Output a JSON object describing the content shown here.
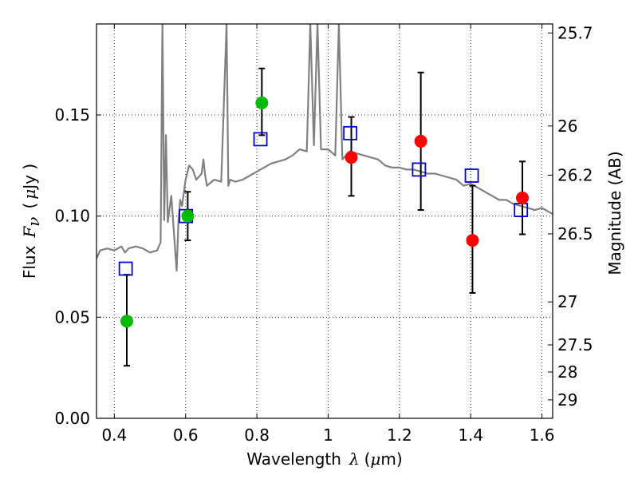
{
  "chart_data": {
    "type": "scatter",
    "xlabel": {
      "prefix": "Wavelength",
      "symbol": "λ",
      "unit_open": "(",
      "unit_mu": "μ",
      "unit_rest": "m)"
    },
    "ylabel": {
      "prefix": "Flux",
      "symbol": "F",
      "subscript": "ν",
      "unit_open": "(",
      "unit_mu": "μ",
      "unit_rest": "Jy )"
    },
    "ylabel_right": "Magnitude (AB)",
    "xlim": [
      0.35,
      1.63
    ],
    "ylim": [
      0.0,
      0.195
    ],
    "x_ticks": [
      0.4,
      0.6,
      0.8,
      1.0,
      1.2,
      1.4,
      1.6
    ],
    "x_tick_labels": [
      "0.4",
      "0.6",
      "0.8",
      "1",
      "1.2",
      "1.4",
      "1.6"
    ],
    "y_ticks": [
      0.0,
      0.05,
      0.1,
      0.15
    ],
    "y_tick_labels": [
      "0.00",
      "0.05",
      "0.10",
      "0.15"
    ],
    "right_ticks": [
      {
        "mag": 25.7,
        "label": "25.7"
      },
      {
        "mag": 26,
        "label": "26"
      },
      {
        "mag": 26.2,
        "label": "26.2"
      },
      {
        "mag": 26.5,
        "label": "26.5"
      },
      {
        "mag": 27,
        "label": "27"
      },
      {
        "mag": 27.5,
        "label": "27.5"
      },
      {
        "mag": 28,
        "label": "28"
      },
      {
        "mag": 29,
        "label": "29"
      }
    ],
    "grid": true,
    "colors": {
      "model": "#808080",
      "green": "#00bb00",
      "red": "#ff0000",
      "model_flux_box": "#0000cc",
      "errorbar": "#000000"
    },
    "model_spectrum": {
      "x": [
        0.35,
        0.36,
        0.38,
        0.4,
        0.42,
        0.43,
        0.44,
        0.46,
        0.48,
        0.5,
        0.52,
        0.53,
        0.535,
        0.54,
        0.545,
        0.55,
        0.56,
        0.575,
        0.58,
        0.585,
        0.59,
        0.6,
        0.61,
        0.62,
        0.63,
        0.645,
        0.65,
        0.655,
        0.66,
        0.68,
        0.7,
        0.715,
        0.72,
        0.725,
        0.74,
        0.76,
        0.78,
        0.8,
        0.82,
        0.84,
        0.86,
        0.88,
        0.9,
        0.92,
        0.94,
        0.95,
        0.96,
        0.97,
        0.98,
        1.0,
        1.02,
        1.03,
        1.04,
        1.06,
        1.08,
        1.1,
        1.12,
        1.14,
        1.16,
        1.18,
        1.2,
        1.22,
        1.24,
        1.26,
        1.28,
        1.3,
        1.32,
        1.34,
        1.36,
        1.38,
        1.4,
        1.42,
        1.44,
        1.46,
        1.48,
        1.5,
        1.52,
        1.54,
        1.56,
        1.58,
        1.6,
        1.63
      ],
      "y": [
        0.079,
        0.083,
        0.084,
        0.083,
        0.085,
        0.082,
        0.084,
        0.085,
        0.084,
        0.082,
        0.083,
        0.087,
        0.195,
        0.098,
        0.14,
        0.097,
        0.11,
        0.073,
        0.098,
        0.108,
        0.105,
        0.118,
        0.125,
        0.123,
        0.118,
        0.121,
        0.128,
        0.12,
        0.115,
        0.118,
        0.117,
        0.195,
        0.115,
        0.118,
        0.117,
        0.118,
        0.12,
        0.122,
        0.124,
        0.126,
        0.127,
        0.128,
        0.13,
        0.133,
        0.132,
        0.195,
        0.135,
        0.195,
        0.133,
        0.133,
        0.13,
        0.195,
        0.128,
        0.132,
        0.131,
        0.13,
        0.129,
        0.128,
        0.125,
        0.124,
        0.124,
        0.123,
        0.123,
        0.122,
        0.121,
        0.121,
        0.12,
        0.119,
        0.118,
        0.115,
        0.116,
        0.114,
        0.112,
        0.11,
        0.108,
        0.108,
        0.106,
        0.105,
        0.104,
        0.103,
        0.104,
        0.101
      ]
    },
    "observed_green": [
      {
        "x": 0.435,
        "y": 0.048,
        "err_lo": 0.026,
        "err_hi": 0.071
      },
      {
        "x": 0.606,
        "y": 0.1,
        "err_lo": 0.088,
        "err_hi": 0.112
      },
      {
        "x": 0.814,
        "y": 0.156,
        "err_lo": 0.14,
        "err_hi": 0.173
      }
    ],
    "observed_red": [
      {
        "x": 1.065,
        "y": 0.129,
        "err_lo": 0.11,
        "err_hi": 0.149
      },
      {
        "x": 1.26,
        "y": 0.137,
        "err_lo": 0.103,
        "err_hi": 0.171
      },
      {
        "x": 1.405,
        "y": 0.088,
        "err_lo": 0.062,
        "err_hi": 0.115
      },
      {
        "x": 1.545,
        "y": 0.109,
        "err_lo": 0.091,
        "err_hi": 0.127
      }
    ],
    "model_fluxes": [
      {
        "x": 0.432,
        "y": 0.074
      },
      {
        "x": 0.601,
        "y": 0.1
      },
      {
        "x": 0.81,
        "y": 0.138
      },
      {
        "x": 1.062,
        "y": 0.141
      },
      {
        "x": 1.255,
        "y": 0.123
      },
      {
        "x": 1.403,
        "y": 0.12
      },
      {
        "x": 1.541,
        "y": 0.103
      }
    ]
  }
}
